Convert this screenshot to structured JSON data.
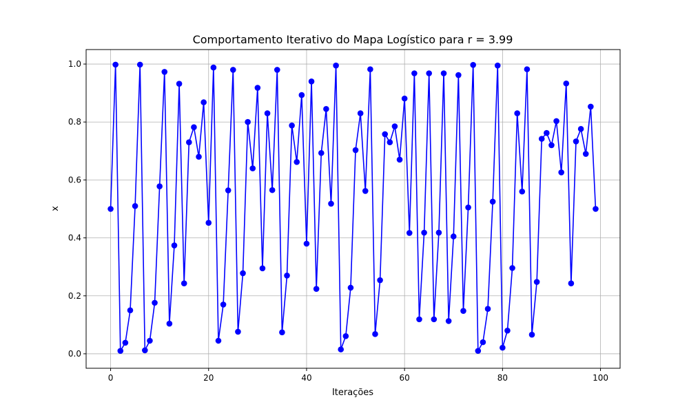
{
  "chart_data": {
    "type": "line",
    "title": "Comportamento Iterativo do Mapa Logístico para r = 3.99",
    "xlabel": "Iterações",
    "ylabel": "x",
    "xlim": [
      -5,
      104
    ],
    "ylim": [
      -0.05,
      1.05
    ],
    "xticks": [
      0,
      20,
      40,
      60,
      80,
      100
    ],
    "yticks": [
      0.0,
      0.2,
      0.4,
      0.6,
      0.8,
      1.0
    ],
    "xtick_labels": [
      "0",
      "20",
      "40",
      "60",
      "80",
      "100"
    ],
    "ytick_labels": [
      "0.0",
      "0.2",
      "0.4",
      "0.6",
      "0.8",
      "1.0"
    ],
    "grid": true,
    "color": "#0000ff",
    "marker": "circle",
    "x": [
      0,
      1,
      2,
      3,
      4,
      5,
      6,
      7,
      8,
      9,
      10,
      11,
      12,
      13,
      14,
      15,
      16,
      17,
      18,
      19,
      20,
      21,
      22,
      23,
      24,
      25,
      26,
      27,
      28,
      29,
      30,
      31,
      32,
      33,
      34,
      35,
      36,
      37,
      38,
      39,
      40,
      41,
      42,
      43,
      44,
      45,
      46,
      47,
      48,
      49,
      50,
      51,
      52,
      53,
      54,
      55,
      56,
      57,
      58,
      59,
      60,
      61,
      62,
      63,
      64,
      65,
      66,
      67,
      68,
      69,
      70,
      71,
      72,
      73,
      74,
      75,
      76,
      77,
      78,
      79,
      80,
      81,
      82,
      83,
      84,
      85,
      86,
      87,
      88,
      89,
      90,
      91,
      92,
      93,
      94,
      95,
      96,
      97,
      98,
      99
    ],
    "y": [
      0.5,
      0.998,
      0.01,
      0.038,
      0.15,
      0.51,
      0.998,
      0.012,
      0.045,
      0.176,
      0.578,
      0.973,
      0.104,
      0.374,
      0.932,
      0.243,
      0.73,
      0.782,
      0.68,
      0.868,
      0.452,
      0.988,
      0.045,
      0.17,
      0.564,
      0.98,
      0.076,
      0.278,
      0.8,
      0.64,
      0.918,
      0.295,
      0.83,
      0.565,
      0.98,
      0.074,
      0.27,
      0.788,
      0.662,
      0.893,
      0.38,
      0.94,
      0.224,
      0.693,
      0.845,
      0.518,
      0.995,
      0.015,
      0.061,
      0.228,
      0.703,
      0.83,
      0.562,
      0.982,
      0.068,
      0.254,
      0.758,
      0.73,
      0.785,
      0.67,
      0.881,
      0.417,
      0.968,
      0.119,
      0.418,
      0.968,
      0.119,
      0.418,
      0.968,
      0.113,
      0.405,
      0.962,
      0.148,
      0.505,
      0.997,
      0.01,
      0.04,
      0.155,
      0.525,
      0.995,
      0.021,
      0.08,
      0.296,
      0.83,
      0.56,
      0.982,
      0.066,
      0.248,
      0.742,
      0.762,
      0.72,
      0.803,
      0.626,
      0.933,
      0.243,
      0.733,
      0.776,
      0.69,
      0.853,
      0.5
    ]
  }
}
